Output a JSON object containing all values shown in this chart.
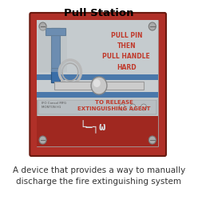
{
  "title": "Pull Station",
  "caption": "A device that provides a way to manually\ndischarge the fire extinguishing system",
  "title_fontsize": 9.5,
  "caption_fontsize": 7.5,
  "bg_color": "#ffffff",
  "outer_red": "#b03028",
  "inner_gray": "#bec5c8",
  "inner_gray2": "#c8cdd0",
  "stripe_blue": "#4a78aa",
  "text_red": "#c0392b",
  "handle_gray": "#cccccc",
  "handle_edge": "#999999",
  "screw_fill": "#aaaaaa",
  "screw_edge": "#777777",
  "bottom_red": "#a02820",
  "logo_text_color": "#d8dde0",
  "info_bg": "#b8bec2",
  "pull_text": "PULL PIN\nTHEN\nPULL HANDLE\nHARD",
  "release_text": "TO RELEASE\nEXTINGUISHING AGENT",
  "pipe_blue": "#3a6ea8",
  "pipe_blue_dark": "#2a5580"
}
